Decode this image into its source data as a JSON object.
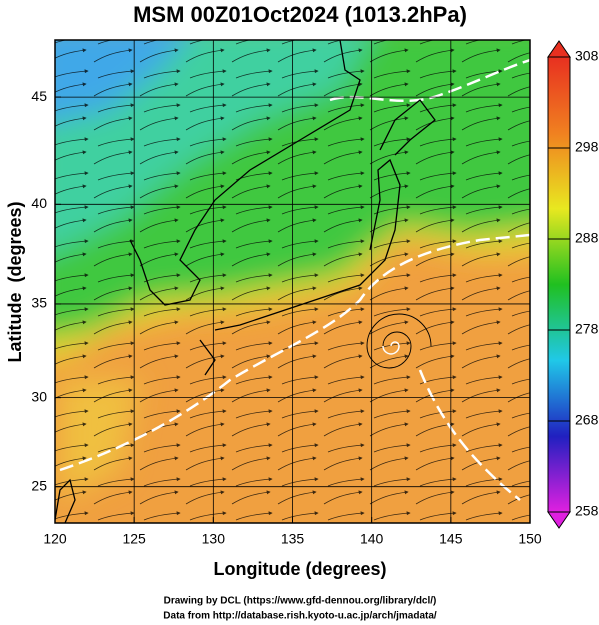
{
  "chart_data": {
    "type": "map",
    "title": "MSM 00Z01Oct2024 (1013.2hPa)",
    "x_label": "Longitude (degrees)",
    "y_label": "Latitude  (degrees)",
    "projection": "mercator",
    "xlim": [
      120,
      150
    ],
    "ylim": [
      22.9,
      47.5
    ],
    "xticks": [
      120,
      125,
      130,
      135,
      140,
      145,
      150
    ],
    "yticks": [
      25,
      30,
      35,
      40,
      45
    ],
    "grid": true,
    "colorbar": {
      "lim": [
        258,
        308
      ],
      "ticks": [
        258,
        268,
        278,
        288,
        298,
        308
      ],
      "colors": [
        "#e020e0",
        "#2020c0",
        "#20c8e8",
        "#20c020",
        "#e8e820",
        "#f08020",
        "#e83020"
      ]
    },
    "footer": [
      "Drawing by DCL (https://www.gfd-dennou.org/library/dcl/)",
      "Data from http://database.rish.kyoto-u.ac.jp/arch/jmadata/"
    ]
  }
}
